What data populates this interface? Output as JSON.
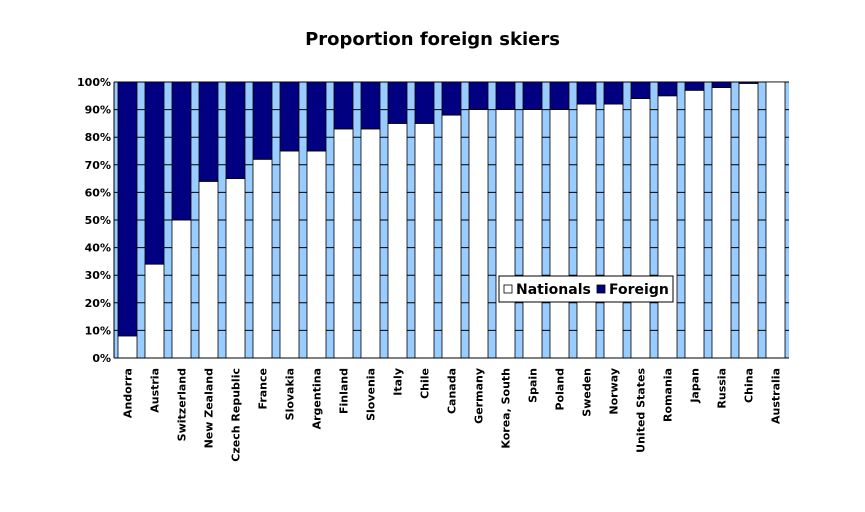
{
  "chart_data": {
    "type": "bar",
    "stacked": true,
    "title": "Proportion foreign skiers",
    "xlabel": "",
    "ylabel": "",
    "ylim": [
      0,
      100
    ],
    "y_ticks": [
      "0%",
      "10%",
      "20%",
      "30%",
      "40%",
      "50%",
      "60%",
      "70%",
      "80%",
      "90%",
      "100%"
    ],
    "categories": [
      "Andorra",
      "Austria",
      "Switzerland",
      "New Zealand",
      "Czech Republic",
      "France",
      "Slovakia",
      "Argentina",
      "Finland",
      "Slovenia",
      "Italy",
      "Chile",
      "Canada",
      "Germany",
      "Korea, South",
      "Spain",
      "Poland",
      "Sweden",
      "Norway",
      "United States",
      "Romania",
      "Japan",
      "Russia",
      "China",
      "Australia"
    ],
    "series": [
      {
        "name": "Nationals",
        "color": "#ffffff",
        "values": [
          8,
          34,
          50,
          64,
          65,
          72,
          75,
          75,
          83,
          83,
          85,
          85,
          88,
          90,
          90,
          90,
          90,
          92,
          92,
          94,
          95,
          97,
          98,
          99.5,
          100
        ]
      },
      {
        "name": "Foreign",
        "color": "#000080",
        "values": [
          92,
          66,
          50,
          36,
          35,
          28,
          25,
          25,
          17,
          17,
          15,
          15,
          12,
          10,
          10,
          10,
          10,
          8,
          8,
          6,
          5,
          3,
          2,
          0.5,
          0
        ]
      }
    ],
    "plot_background": "#99ccff",
    "grid": true,
    "legend_position": "center-right"
  }
}
